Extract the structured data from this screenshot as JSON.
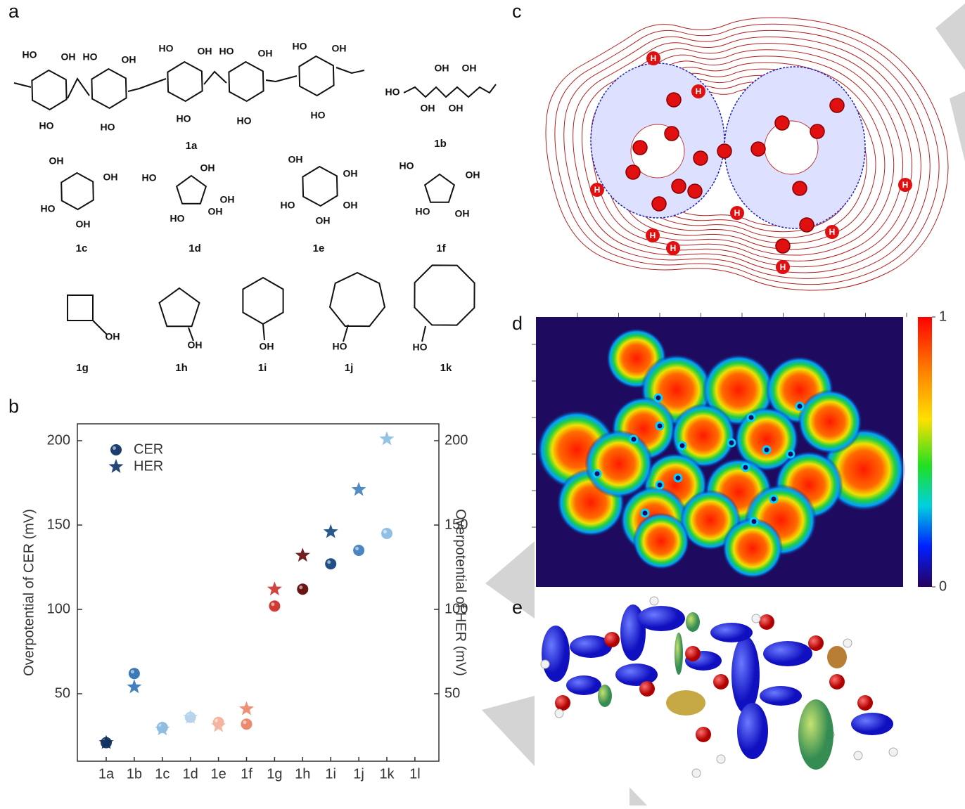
{
  "panels": {
    "a": "a",
    "b": "b",
    "c": "c",
    "d": "d",
    "e": "e"
  },
  "panel_a": {
    "compounds": [
      {
        "label": "1a",
        "groups": [
          "HO",
          "OH",
          "HO",
          "OH",
          "HO",
          "OH",
          "HO",
          "OH",
          "HO",
          "OH",
          "HO",
          "HO",
          "HO",
          "HO",
          "HO"
        ]
      },
      {
        "label": "1b",
        "groups": [
          "OH",
          "OH",
          "HO",
          "OH",
          "OH"
        ]
      },
      {
        "label": "1c",
        "groups": [
          "OH",
          "OH",
          "HO",
          "OH"
        ]
      },
      {
        "label": "1d",
        "groups": [
          "HO",
          "OH",
          "OH",
          "HO",
          "OH"
        ]
      },
      {
        "label": "1e",
        "groups": [
          "OH",
          "OH",
          "HO",
          "OH",
          "OH"
        ]
      },
      {
        "label": "1f",
        "groups": [
          "HO",
          "OH",
          "HO",
          "OH"
        ]
      },
      {
        "label": "1g",
        "groups": [
          "OH"
        ]
      },
      {
        "label": "1h",
        "groups": [
          "OH"
        ]
      },
      {
        "label": "1i",
        "groups": [
          "OH"
        ]
      },
      {
        "label": "1j",
        "groups": [
          "HO"
        ]
      },
      {
        "label": "1k",
        "groups": [
          "HO"
        ]
      }
    ]
  },
  "chart_data": {
    "type": "scatter",
    "y_label": "Overpotential of CER (mV)",
    "y2_label": "Overpotential of HER (mV)",
    "categories": [
      "1a",
      "1b",
      "1c",
      "1d",
      "1e",
      "1f",
      "1g",
      "1h",
      "1i",
      "1j",
      "1k",
      "1l"
    ],
    "ylim": [
      10,
      210
    ],
    "yticks": [
      50,
      100,
      150,
      200
    ],
    "y2lim": [
      10,
      210
    ],
    "y2ticks": [
      50,
      100,
      150,
      200
    ],
    "legend": "upper left",
    "series": [
      {
        "name": "CER",
        "marker": "sphere",
        "color": "#1b3d70",
        "colors": [
          "#1b3d70",
          "#3a7ab8",
          "#8fbde0",
          "#b8d4ea",
          "#f4b4a0",
          "#ec8a6e",
          "#d03a35",
          "#6b1414",
          "#1f4f86",
          "#4a86c0",
          "#8fc0e4",
          "#8fc0e4"
        ],
        "values": [
          21,
          62,
          30,
          36,
          33,
          32,
          102,
          112,
          127,
          135,
          145,
          null
        ]
      },
      {
        "name": "HER",
        "marker": "star",
        "color": "#1b3d70",
        "axis": "y2",
        "colors": [
          "#13305c",
          "#3a7ab8",
          "#8fbde0",
          "#b8d4ea",
          "#f4b4a0",
          "#ec8a6e",
          "#d03a35",
          "#6b1414",
          "#1f4f86",
          "#4a86c0",
          "#8fc0e4",
          "#8fc0e4"
        ],
        "values": [
          21,
          54,
          29,
          36,
          31,
          41,
          112,
          132,
          146,
          171,
          201,
          null
        ]
      }
    ]
  },
  "panel_c": {
    "atom_labels": [
      "H",
      "H",
      "H",
      "H",
      "H",
      "H",
      "H",
      "H",
      "H"
    ]
  },
  "panel_d": {
    "colorbar_ticks": [
      {
        "value": 1,
        "label": "1"
      },
      {
        "value": 0,
        "label": "0"
      }
    ]
  }
}
